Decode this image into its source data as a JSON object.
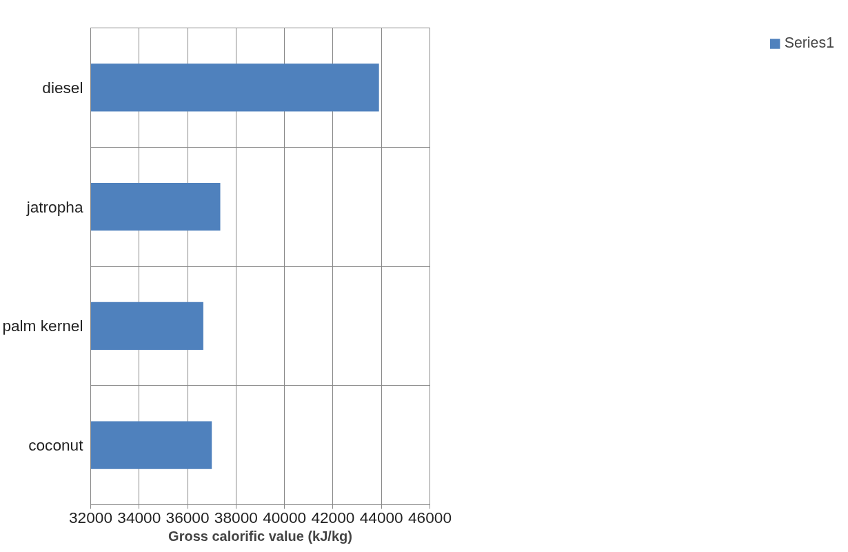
{
  "chart_data": {
    "type": "bar",
    "orientation": "horizontal",
    "xlabel": "Gross calorific value (kJ/kg)",
    "categories": [
      "diesel",
      "jatropha",
      "palm kernel",
      "coconut"
    ],
    "series": [
      {
        "name": "Series1",
        "color": "#4f81bd",
        "values": [
          43900,
          37350,
          36650,
          37000
        ]
      }
    ],
    "xlim": [
      32000,
      46000
    ],
    "xticks": [
      32000,
      34000,
      36000,
      38000,
      40000,
      42000,
      44000,
      46000
    ],
    "grid": true,
    "legend": "right"
  }
}
